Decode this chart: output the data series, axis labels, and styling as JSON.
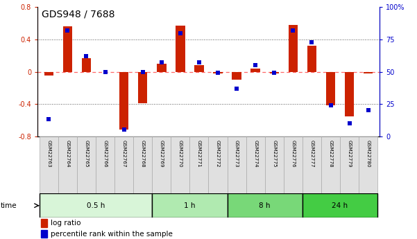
{
  "title": "GDS948 / 7688",
  "samples": [
    "GSM22763",
    "GSM22764",
    "GSM22765",
    "GSM22766",
    "GSM22767",
    "GSM22768",
    "GSM22769",
    "GSM22770",
    "GSM22771",
    "GSM22772",
    "GSM22773",
    "GSM22774",
    "GSM22775",
    "GSM22776",
    "GSM22777",
    "GSM22778",
    "GSM22779",
    "GSM22780"
  ],
  "log_ratio": [
    -0.05,
    0.56,
    0.17,
    0.0,
    -0.72,
    -0.39,
    0.1,
    0.57,
    0.08,
    -0.02,
    -0.1,
    0.04,
    -0.02,
    0.58,
    0.32,
    -0.42,
    -0.55,
    -0.02
  ],
  "percentile": [
    13,
    82,
    62,
    50,
    5,
    50,
    57,
    80,
    57,
    49,
    37,
    55,
    49,
    82,
    73,
    24,
    10,
    20
  ],
  "time_groups": [
    {
      "label": "0.5 h",
      "start": 0,
      "end": 6,
      "color": "#d8f5d8"
    },
    {
      "label": "1 h",
      "start": 6,
      "end": 10,
      "color": "#b0eab0"
    },
    {
      "label": "8 h",
      "start": 10,
      "end": 14,
      "color": "#78d878"
    },
    {
      "label": "24 h",
      "start": 14,
      "end": 18,
      "color": "#44cc44"
    }
  ],
  "ylim_left": [
    -0.8,
    0.8
  ],
  "ylim_right": [
    0,
    100
  ],
  "yticks_left": [
    -0.8,
    -0.4,
    0.0,
    0.4,
    0.8
  ],
  "yticks_right": [
    0,
    25,
    50,
    75,
    100
  ],
  "bar_color": "#cc2200",
  "dot_color": "#0000cc",
  "zero_line_color": "#ff6666",
  "dotted_line_color": "#555555",
  "label_box_color": "#e0e0e0",
  "label_box_edge": "#aaaaaa",
  "legend_log_ratio": "log ratio",
  "legend_percentile": "percentile rank within the sample",
  "bar_width": 0.5,
  "dot_size": 18
}
